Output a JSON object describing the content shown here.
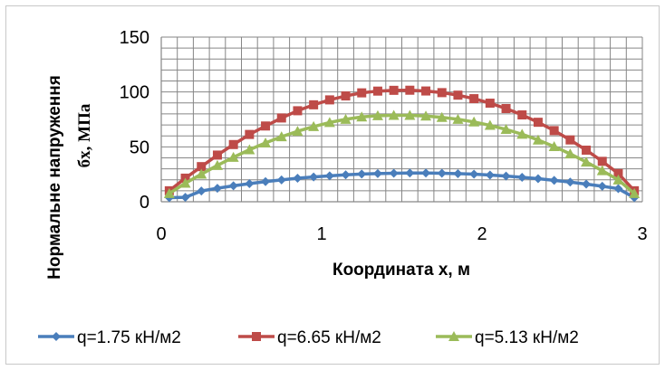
{
  "chart_data": {
    "type": "line",
    "xlabel": "Координата x, м",
    "ylabel_line1": "Нормальне напруження",
    "ylabel_line2": "бx, МПа",
    "xlim": [
      0,
      3
    ],
    "ylim": [
      0,
      150
    ],
    "xticks": [
      "0",
      "1",
      "2",
      "3"
    ],
    "yticks": [
      "0",
      "50",
      "100",
      "150"
    ],
    "grid": true,
    "legend_position": "bottom",
    "x": [
      0.05,
      0.15,
      0.25,
      0.35,
      0.45,
      0.55,
      0.65,
      0.75,
      0.85,
      0.95,
      1.05,
      1.15,
      1.25,
      1.35,
      1.45,
      1.55,
      1.65,
      1.75,
      1.85,
      1.95,
      2.05,
      2.15,
      2.25,
      2.35,
      2.45,
      2.55,
      2.65,
      2.75,
      2.85,
      2.95
    ],
    "series": [
      {
        "name": "q=1.75 кН/м2",
        "color": "#4a7ebb",
        "marker": "diamond",
        "values": [
          3.7,
          4.0,
          9.8,
          12.3,
          14.5,
          16.5,
          18.3,
          19.9,
          21.4,
          22.6,
          23.6,
          24.5,
          25.2,
          25.7,
          26.0,
          26.2,
          26.2,
          26.0,
          25.6,
          25.1,
          24.3,
          23.4,
          22.3,
          21.0,
          19.5,
          17.9,
          16.1,
          14.1,
          11.9,
          3.7
        ]
      },
      {
        "name": "q=6.65 кН/м2",
        "color": "#be4b48",
        "marker": "square",
        "values": [
          10.0,
          21.5,
          32.0,
          42.5,
          52.1,
          61.3,
          69.0,
          76.3,
          82.9,
          88.3,
          92.8,
          96.4,
          99.2,
          100.8,
          101.5,
          101.6,
          100.9,
          99.4,
          97.1,
          93.9,
          89.8,
          84.9,
          79.1,
          72.4,
          64.8,
          56.3,
          47.0,
          36.8,
          25.7,
          10.0
        ]
      },
      {
        "name": "q=5.13 кН/м2",
        "color": "#9bbb59",
        "marker": "triangle",
        "values": [
          7.5,
          16.9,
          25.1,
          33.1,
          40.5,
          47.4,
          53.6,
          59.2,
          64.2,
          68.5,
          72.2,
          75.1,
          77.3,
          78.4,
          78.7,
          78.7,
          78.1,
          76.9,
          75.1,
          72.7,
          69.6,
          65.9,
          61.5,
          56.3,
          50.3,
          43.6,
          36.2,
          28.3,
          19.9,
          7.5
        ]
      }
    ]
  }
}
